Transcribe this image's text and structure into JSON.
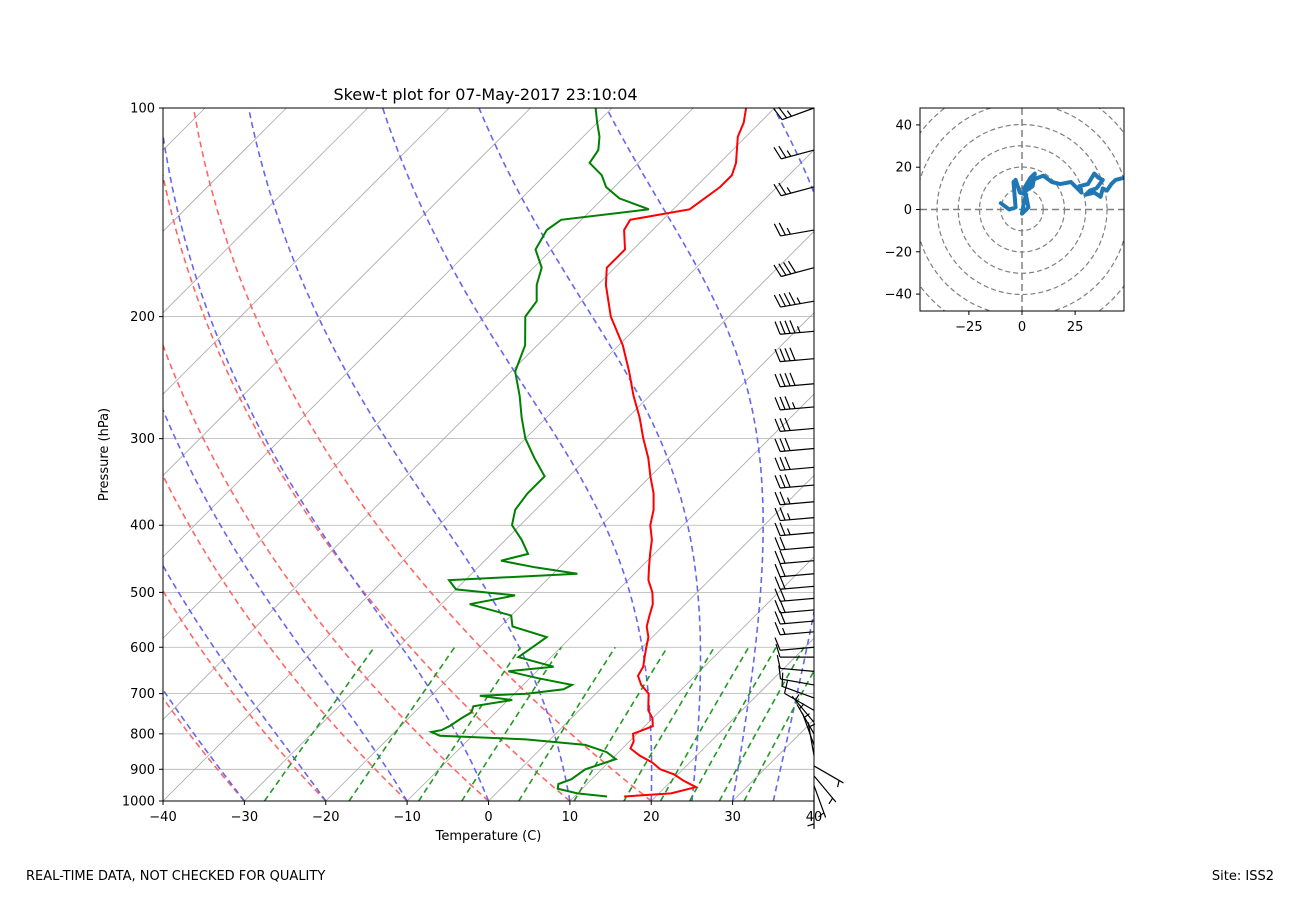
{
  "footer": {
    "quality_note": "REAL-TIME DATA, NOT CHECKED FOR QUALITY",
    "site": "Site: ISS2"
  },
  "colors": {
    "temperature": "#ff0000",
    "dewpoint": "#008000",
    "dry_adiabat": "#ff6666",
    "moist_adiabat": "#6666ee",
    "mixing_ratio": "#229922",
    "isotherm": "#aaaaaa",
    "hodograph": "#1f77b4"
  },
  "chart_data": [
    {
      "type": "line",
      "kind": "skew-t",
      "title": "Skew-t plot for 07-May-2017 23:10:04",
      "xlabel": "Temperature (C)",
      "ylabel": "Pressure (hPa)",
      "xlim": [
        -40,
        40
      ],
      "ylim": [
        1000,
        100
      ],
      "yscale": "log",
      "xticks": [
        -40,
        -30,
        -20,
        -10,
        0,
        10,
        20,
        30,
        40
      ],
      "yticks": [
        1000,
        900,
        800,
        700,
        600,
        500,
        400,
        300,
        200,
        100
      ],
      "grid": true,
      "isotherm_temps": [
        -130,
        -120,
        -110,
        -100,
        -90,
        -80,
        -70,
        -60,
        -50,
        -40,
        -30,
        -20,
        -10,
        0,
        10,
        20,
        30,
        40
      ],
      "dry_adiabats_thetaC": [
        -30,
        -20,
        -10,
        0,
        10,
        20
      ],
      "moist_adiabats_T1000": [
        -40,
        -30,
        -20,
        -10,
        0,
        10,
        20,
        25,
        30,
        35
      ],
      "mixing_ratio_lines_gkg": [
        0.4,
        1,
        2,
        3,
        5,
        8,
        12,
        16,
        20,
        25,
        30
      ],
      "series": [
        {
          "name": "Temperature",
          "pressure": [
            985,
            975,
            955,
            935,
            915,
            900,
            880,
            860,
            840,
            820,
            800,
            780,
            760,
            740,
            720,
            700,
            680,
            660,
            640,
            620,
            600,
            580,
            560,
            540,
            520,
            500,
            480,
            460,
            440,
            420,
            400,
            380,
            360,
            340,
            320,
            300,
            280,
            260,
            240,
            220,
            200,
            180,
            170,
            160,
            150,
            145,
            140,
            130,
            125,
            120,
            110,
            105,
            100
          ],
          "temperature": [
            16.1,
            21.5,
            23.8,
            21.5,
            19.5,
            17.2,
            15.4,
            13.0,
            11.0,
            10.5,
            9.5,
            11.0,
            10.0,
            8.5,
            7.5,
            6.5,
            4.5,
            3.0,
            2.5,
            1.5,
            0.5,
            -0.5,
            -2.0,
            -3.0,
            -4.0,
            -5.5,
            -7.5,
            -9.0,
            -10.5,
            -12.0,
            -14.0,
            -15.5,
            -17.5,
            -20.0,
            -22.5,
            -25.5,
            -28.5,
            -32.0,
            -35.5,
            -39.5,
            -44.5,
            -49.0,
            -51.0,
            -51.0,
            -53.5,
            -54.0,
            -48.0,
            -47.0,
            -47.0,
            -48.0,
            -51.0,
            -52.0,
            -53.5
          ]
        },
        {
          "name": "Dewpoint",
          "pressure": [
            985,
            975,
            960,
            945,
            930,
            900,
            870,
            850,
            830,
            815,
            805,
            795,
            790,
            780,
            760,
            745,
            730,
            715,
            705,
            700,
            690,
            680,
            665,
            650,
            640,
            620,
            600,
            580,
            560,
            540,
            520,
            505,
            495,
            480,
            470,
            460,
            450,
            440,
            420,
            400,
            380,
            360,
            340,
            320,
            300,
            280,
            260,
            240,
            220,
            200,
            190,
            180,
            170,
            160,
            150,
            145,
            140,
            135,
            130,
            125,
            120,
            115,
            110,
            105,
            100
          ],
          "dewpoint": [
            14.0,
            10.0,
            7.0,
            6.5,
            7.5,
            8.0,
            10.5,
            8.5,
            5.0,
            -3.0,
            -14.0,
            -15.5,
            -14.5,
            -14.0,
            -13.5,
            -13.0,
            -13.5,
            -9.5,
            -14.0,
            -8.5,
            -4.5,
            -4.0,
            -9.0,
            -13.5,
            -8.5,
            -14.0,
            -13.5,
            -13.0,
            -18.5,
            -20.0,
            -26.5,
            -22.0,
            -30.0,
            -32.0,
            -17.0,
            -23.0,
            -28.0,
            -25.5,
            -28.0,
            -31.0,
            -32.5,
            -33.0,
            -33.0,
            -36.5,
            -40.0,
            -43.0,
            -46.0,
            -49.5,
            -51.5,
            -55.0,
            -55.5,
            -57.5,
            -59.0,
            -62.0,
            -63.0,
            -62.5,
            -53.0,
            -58.0,
            -61.0,
            -63.0,
            -66.0,
            -66.5,
            -68.0,
            -70.0,
            -72.0
          ]
        }
      ],
      "wind_barbs": {
        "pressure": [
          100,
          115,
          130,
          150,
          170,
          190,
          210,
          230,
          250,
          270,
          290,
          310,
          330,
          350,
          370,
          390,
          410,
          430,
          450,
          470,
          490,
          510,
          530,
          550,
          570,
          600,
          620,
          650,
          680,
          710,
          740,
          770,
          800,
          830,
          860,
          890,
          920,
          950,
          980
        ],
        "speed_kt": [
          25,
          25,
          25,
          25,
          40,
          45,
          45,
          40,
          40,
          35,
          30,
          30,
          30,
          30,
          25,
          25,
          25,
          20,
          20,
          20,
          20,
          20,
          20,
          20,
          15,
          10,
          10,
          10,
          10,
          10,
          10,
          5,
          5,
          5,
          5,
          5,
          5,
          5,
          5
        ],
        "direction_deg": [
          250,
          255,
          255,
          260,
          255,
          260,
          265,
          265,
          265,
          265,
          265,
          265,
          265,
          265,
          265,
          265,
          265,
          265,
          265,
          265,
          265,
          265,
          265,
          265,
          265,
          265,
          270,
          275,
          280,
          290,
          300,
          320,
          330,
          340,
          350,
          120,
          140,
          160,
          180
        ]
      }
    },
    {
      "type": "line",
      "kind": "hodograph",
      "xlim": [
        -48,
        48
      ],
      "ylim": [
        -48,
        48
      ],
      "xticks": [
        -25,
        0,
        25
      ],
      "yticks": [
        -40,
        -20,
        0,
        20,
        40
      ],
      "rings": [
        10,
        20,
        30,
        40,
        50,
        60
      ],
      "u": [
        -10,
        -6,
        -3,
        -4,
        -3,
        -1,
        2,
        1,
        0,
        3,
        2,
        1,
        4,
        6,
        5,
        2,
        5,
        10,
        14,
        18,
        23,
        25,
        28,
        27,
        31,
        34,
        36,
        38,
        35,
        32,
        30,
        34,
        37,
        38,
        40,
        42,
        44,
        48
      ],
      "v": [
        3,
        0,
        1,
        13,
        14,
        8,
        7,
        4,
        -2,
        1,
        6,
        10,
        15,
        17,
        11,
        9,
        14,
        16,
        13,
        12,
        13,
        11,
        8,
        11,
        12,
        17,
        15,
        14,
        10,
        9,
        7,
        8,
        6,
        10,
        9,
        12,
        14,
        15
      ]
    }
  ]
}
